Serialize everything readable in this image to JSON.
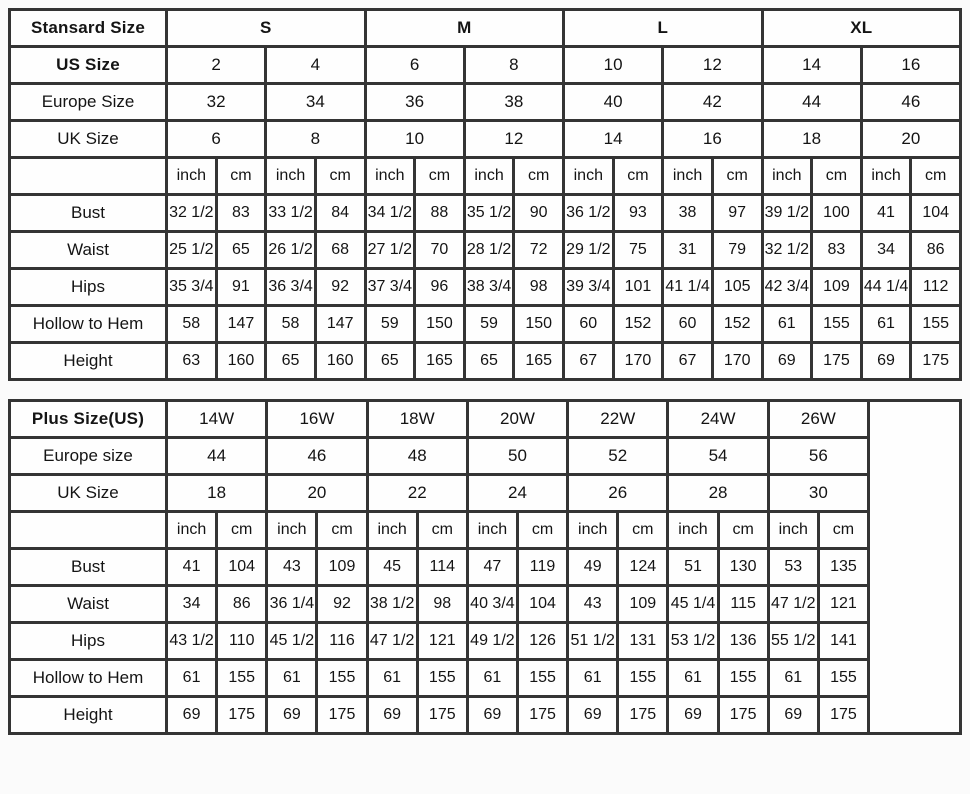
{
  "page": {
    "background": "#fbfbfb",
    "cell_background": "#fefefe",
    "border_color": "#343434",
    "text_color": "#141414"
  },
  "standard_table": {
    "corner_label": "Stansard Size",
    "group_colspan": 4,
    "size_groups": [
      "S",
      "M",
      "L",
      "XL"
    ],
    "conversion_rows": [
      {
        "label": "US Size",
        "bold": true,
        "colspan": 2,
        "values": [
          "2",
          "4",
          "6",
          "8",
          "10",
          "12",
          "14",
          "16"
        ]
      },
      {
        "label": "Europe Size",
        "bold": false,
        "colspan": 2,
        "values": [
          "32",
          "34",
          "36",
          "38",
          "40",
          "42",
          "44",
          "46"
        ]
      },
      {
        "label": "UK Size",
        "bold": false,
        "colspan": 2,
        "values": [
          "6",
          "8",
          "10",
          "12",
          "14",
          "16",
          "18",
          "20"
        ]
      }
    ],
    "unit_labels": [
      "inch",
      "cm"
    ],
    "unit_pairs": 8,
    "trailing_empty_column": false,
    "measurement_rows": [
      {
        "label": "Bust",
        "values": [
          "32 1/2",
          "83",
          "33 1/2",
          "84",
          "34 1/2",
          "88",
          "35 1/2",
          "90",
          "36 1/2",
          "93",
          "38",
          "97",
          "39 1/2",
          "100",
          "41",
          "104"
        ]
      },
      {
        "label": "Waist",
        "values": [
          "25 1/2",
          "65",
          "26 1/2",
          "68",
          "27 1/2",
          "70",
          "28 1/2",
          "72",
          "29 1/2",
          "75",
          "31",
          "79",
          "32 1/2",
          "83",
          "34",
          "86"
        ]
      },
      {
        "label": "Hips",
        "values": [
          "35 3/4",
          "91",
          "36 3/4",
          "92",
          "37 3/4",
          "96",
          "38 3/4",
          "98",
          "39 3/4",
          "101",
          "41 1/4",
          "105",
          "42 3/4",
          "109",
          "44 1/4",
          "112"
        ]
      },
      {
        "label": "Hollow to Hem",
        "values": [
          "58",
          "147",
          "58",
          "147",
          "59",
          "150",
          "59",
          "150",
          "60",
          "152",
          "60",
          "152",
          "61",
          "155",
          "61",
          "155"
        ]
      },
      {
        "label": "Height",
        "values": [
          "63",
          "160",
          "65",
          "160",
          "65",
          "165",
          "65",
          "165",
          "67",
          "170",
          "67",
          "170",
          "69",
          "175",
          "69",
          "175"
        ]
      }
    ]
  },
  "plus_table": {
    "corner_label": "Plus Size(US)",
    "group_colspan": 2,
    "size_groups": [
      "14W",
      "16W",
      "18W",
      "20W",
      "22W",
      "24W",
      "26W"
    ],
    "conversion_rows": [
      {
        "label": "Europe size",
        "bold": false,
        "colspan": 2,
        "values": [
          "44",
          "46",
          "48",
          "50",
          "52",
          "54",
          "56"
        ]
      },
      {
        "label": "UK Size",
        "bold": false,
        "colspan": 2,
        "values": [
          "18",
          "20",
          "22",
          "24",
          "26",
          "28",
          "30"
        ]
      }
    ],
    "unit_labels": [
      "inch",
      "cm"
    ],
    "unit_pairs": 7,
    "trailing_empty_column": true,
    "measurement_rows": [
      {
        "label": "Bust",
        "values": [
          "41",
          "104",
          "43",
          "109",
          "45",
          "114",
          "47",
          "119",
          "49",
          "124",
          "51",
          "130",
          "53",
          "135"
        ]
      },
      {
        "label": "Waist",
        "values": [
          "34",
          "86",
          "36 1/4",
          "92",
          "38 1/2",
          "98",
          "40 3/4",
          "104",
          "43",
          "109",
          "45 1/4",
          "115",
          "47 1/2",
          "121"
        ]
      },
      {
        "label": "Hips",
        "values": [
          "43 1/2",
          "110",
          "45 1/2",
          "116",
          "47 1/2",
          "121",
          "49 1/2",
          "126",
          "51 1/2",
          "131",
          "53 1/2",
          "136",
          "55 1/2",
          "141"
        ]
      },
      {
        "label": "Hollow to Hem",
        "values": [
          "61",
          "155",
          "61",
          "155",
          "61",
          "155",
          "61",
          "155",
          "61",
          "155",
          "61",
          "155",
          "61",
          "155"
        ]
      },
      {
        "label": "Height",
        "values": [
          "69",
          "175",
          "69",
          "175",
          "69",
          "175",
          "69",
          "175",
          "69",
          "175",
          "69",
          "175",
          "69",
          "175"
        ]
      }
    ]
  }
}
